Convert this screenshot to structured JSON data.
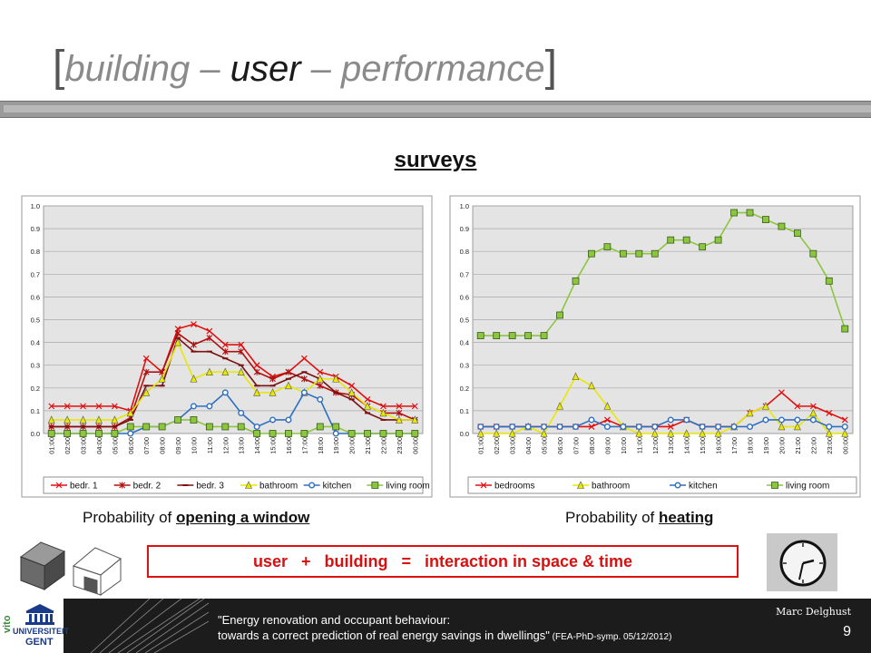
{
  "slide": {
    "title_open": "[",
    "title_pre": "building – ",
    "title_hl": "user",
    "title_post": " – performance",
    "title_close": "]",
    "subtitle": "surveys",
    "caption_left_pre": "Probability of ",
    "caption_left_u": "opening a window",
    "caption_right_pre": "Probability of ",
    "caption_right_u": "heating",
    "equation": "user   +   building   =   interaction in space & time",
    "footer_line1": "\"Energy renovation and occupant behaviour:",
    "footer_line2": "towards a correct prediction of real energy savings in dwellings\"",
    "footer_line2_small": " (FEA-PhD-symp. 05/12/2012)",
    "author": "Marc Delghust",
    "page": "9",
    "logo_text_1": "UNIVERSITEIT",
    "logo_text_2": "GENT",
    "logo_text_3": "vito"
  },
  "chart_data": [
    {
      "type": "line",
      "title": "",
      "ylim": [
        0,
        1.0
      ],
      "yticks": [
        "0.0",
        "0.1",
        "0.2",
        "0.3",
        "0.4",
        "0.5",
        "0.6",
        "0.7",
        "0.8",
        "0.9",
        "1.0"
      ],
      "grid": true,
      "legend": "bottom",
      "x": [
        "01:00",
        "02:00",
        "03:00",
        "04:00",
        "05:00",
        "06:00",
        "07:00",
        "08:00",
        "09:00",
        "10:00",
        "11:00",
        "12:00",
        "13:00",
        "14:00",
        "15:00",
        "16:00",
        "17:00",
        "18:00",
        "19:00",
        "20:00",
        "21:00",
        "22:00",
        "23:00",
        "00:00"
      ],
      "series": [
        {
          "name": "bedr. 1",
          "color": "#e01010",
          "marker": "x",
          "values": [
            0.12,
            0.12,
            0.12,
            0.12,
            0.12,
            0.1,
            0.33,
            0.27,
            0.46,
            0.48,
            0.45,
            0.39,
            0.39,
            0.3,
            0.25,
            0.27,
            0.33,
            0.27,
            0.25,
            0.21,
            0.15,
            0.12,
            0.12,
            0.12
          ]
        },
        {
          "name": "bedr. 2",
          "color": "#b01010",
          "marker": "star",
          "values": [
            0.03,
            0.03,
            0.03,
            0.03,
            0.03,
            0.07,
            0.27,
            0.27,
            0.44,
            0.39,
            0.42,
            0.36,
            0.36,
            0.27,
            0.24,
            0.27,
            0.24,
            0.21,
            0.18,
            0.17,
            0.12,
            0.09,
            0.09,
            0.06
          ]
        },
        {
          "name": "bedr. 3",
          "color": "#7a1010",
          "marker": "dash",
          "values": [
            0.03,
            0.03,
            0.03,
            0.03,
            0.03,
            0.06,
            0.21,
            0.21,
            0.42,
            0.36,
            0.36,
            0.33,
            0.3,
            0.21,
            0.21,
            0.24,
            0.27,
            0.24,
            0.18,
            0.15,
            0.09,
            0.06,
            0.06,
            0.06
          ]
        },
        {
          "name": "bathroom",
          "color": "#e8e800",
          "marker": "triangle",
          "values": [
            0.06,
            0.06,
            0.06,
            0.06,
            0.06,
            0.09,
            0.18,
            0.24,
            0.4,
            0.24,
            0.27,
            0.27,
            0.27,
            0.18,
            0.18,
            0.21,
            0.18,
            0.24,
            0.24,
            0.18,
            0.12,
            0.09,
            0.06,
            0.06
          ]
        },
        {
          "name": "kitchen",
          "color": "#2f6fc0",
          "marker": "circle",
          "values": [
            0.0,
            0.0,
            0.0,
            0.0,
            0.0,
            0.0,
            0.03,
            0.03,
            0.06,
            0.12,
            0.12,
            0.18,
            0.09,
            0.03,
            0.06,
            0.06,
            0.18,
            0.15,
            0.0,
            0.0,
            0.0,
            0.0,
            0.0,
            0.0
          ]
        },
        {
          "name": "living room",
          "color": "#8cc63f",
          "marker": "square",
          "values": [
            0.0,
            0.0,
            0.0,
            0.0,
            0.0,
            0.03,
            0.03,
            0.03,
            0.06,
            0.06,
            0.03,
            0.03,
            0.03,
            0.0,
            0.0,
            0.0,
            0.0,
            0.03,
            0.03,
            0.0,
            0.0,
            0.0,
            0.0,
            0.0
          ]
        }
      ]
    },
    {
      "type": "line",
      "title": "",
      "ylim": [
        0,
        1.0
      ],
      "yticks": [
        "0.0",
        "0.1",
        "0.2",
        "0.3",
        "0.4",
        "0.5",
        "0.6",
        "0.7",
        "0.8",
        "0.9",
        "1.0"
      ],
      "grid": true,
      "legend": "bottom",
      "x": [
        "01:00",
        "02:00",
        "03:00",
        "04:00",
        "05:00",
        "06:00",
        "07:00",
        "08:00",
        "09:00",
        "10:00",
        "11:00",
        "12:00",
        "13:00",
        "14:00",
        "15:00",
        "16:00",
        "17:00",
        "18:00",
        "19:00",
        "20:00",
        "21:00",
        "22:00",
        "23:00",
        "00:00"
      ],
      "series": [
        {
          "name": "bedrooms",
          "color": "#e01010",
          "marker": "x",
          "values": [
            0.03,
            0.03,
            0.03,
            0.03,
            0.03,
            0.03,
            0.03,
            0.03,
            0.06,
            0.03,
            0.03,
            0.03,
            0.03,
            0.06,
            0.03,
            0.03,
            0.03,
            0.09,
            0.12,
            0.18,
            0.12,
            0.12,
            0.09,
            0.06
          ]
        },
        {
          "name": "bathroom",
          "color": "#e8e800",
          "marker": "triangle",
          "values": [
            0.0,
            0.0,
            0.0,
            0.03,
            0.0,
            0.12,
            0.25,
            0.21,
            0.12,
            0.03,
            0.0,
            0.0,
            0.0,
            0.0,
            0.0,
            0.0,
            0.03,
            0.09,
            0.12,
            0.03,
            0.03,
            0.09,
            0.0,
            0.0
          ]
        },
        {
          "name": "kitchen",
          "color": "#2f6fc0",
          "marker": "circle",
          "values": [
            0.03,
            0.03,
            0.03,
            0.03,
            0.03,
            0.03,
            0.03,
            0.06,
            0.03,
            0.03,
            0.03,
            0.03,
            0.06,
            0.06,
            0.03,
            0.03,
            0.03,
            0.03,
            0.06,
            0.06,
            0.06,
            0.06,
            0.03,
            0.03
          ]
        },
        {
          "name": "living room",
          "color": "#8cc63f",
          "marker": "square",
          "values": [
            0.43,
            0.43,
            0.43,
            0.43,
            0.43,
            0.52,
            0.67,
            0.79,
            0.82,
            0.79,
            0.79,
            0.79,
            0.85,
            0.85,
            0.82,
            0.85,
            0.97,
            0.97,
            0.94,
            0.91,
            0.88,
            0.79,
            0.67,
            0.46
          ]
        }
      ]
    }
  ]
}
